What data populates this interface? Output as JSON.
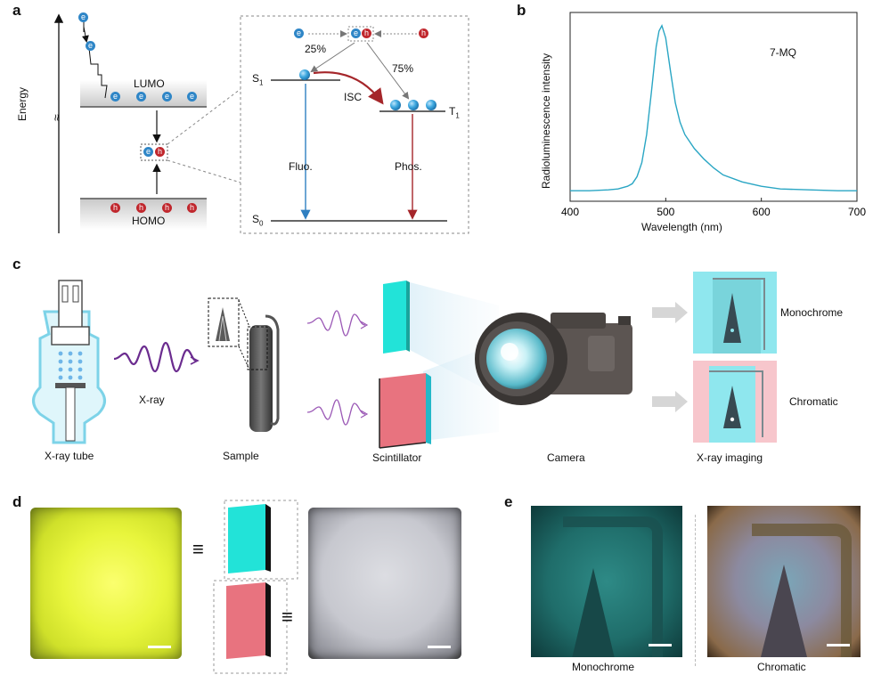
{
  "panels": {
    "a": "a",
    "b": "b",
    "c": "c",
    "d": "d",
    "e": "e"
  },
  "panel_a": {
    "energy_label": "Energy",
    "break_symbol": "≈",
    "lumo_label": "LUMO",
    "homo_label": "HOMO",
    "electron_symbol": "e",
    "hole_symbol": "h",
    "s1_label": "S",
    "s1_sub": "1",
    "t1_label": "T",
    "t1_sub": "1",
    "s0_label": "S",
    "s0_sub": "0",
    "singlet_pct": "25%",
    "triplet_pct": "75%",
    "isc_label": "ISC",
    "fluo_label": "Fluo.",
    "phos_label": "Phos."
  },
  "panel_c": {
    "xray_label": "X-ray",
    "xray_tube_label": "X-ray tube",
    "sample_label": "Sample",
    "scintillator_label": "Scintillator",
    "camera_label": "Camera",
    "imaging_label": "X-ray imaging",
    "monochrome_label": "Monochrome",
    "chromatic_label": "Chromatic"
  },
  "panel_d": {
    "equiv_symbol": "≡"
  },
  "panel_e": {
    "monochrome_caption": "Monochrome",
    "chromatic_caption": "Chromatic"
  },
  "colors": {
    "cyan_scintillator": "#22e3d8",
    "pink_scintillator": "#e8737f",
    "spectrum_line": "#2aa6c4",
    "fluo_arrow": "#2f7fc1",
    "phos_arrow": "#a5262a",
    "xray_wave": "#6b2c8f"
  },
  "chart_data": {
    "type": "line",
    "title": "",
    "legend": "7-MQ",
    "xlabel": "Wavelength (nm)",
    "ylabel": "Radioluminescence intensity",
    "xlim": [
      400,
      700
    ],
    "ylim": [
      0,
      1.0
    ],
    "x_ticks": [
      "400",
      "500",
      "600",
      "700"
    ],
    "series": [
      {
        "name": "7-MQ",
        "x": [
          400,
          420,
          440,
          450,
          460,
          465,
          470,
          475,
          480,
          485,
          490,
          493,
          496,
          500,
          505,
          510,
          515,
          520,
          530,
          540,
          550,
          560,
          580,
          600,
          620,
          650,
          680,
          700
        ],
        "y": [
          0.06,
          0.06,
          0.065,
          0.07,
          0.085,
          0.1,
          0.14,
          0.22,
          0.38,
          0.62,
          0.88,
          0.97,
          1.0,
          0.93,
          0.74,
          0.56,
          0.45,
          0.38,
          0.3,
          0.24,
          0.19,
          0.15,
          0.11,
          0.085,
          0.07,
          0.065,
          0.06,
          0.06
        ]
      }
    ]
  }
}
